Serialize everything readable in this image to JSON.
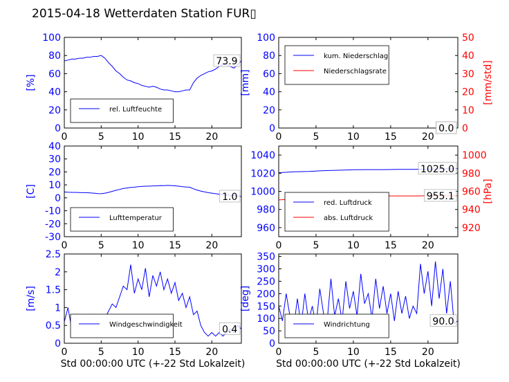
{
  "title": "2015-04-18 Wetterdaten Station FUR▯",
  "colors": {
    "left_axis": "#0000ff",
    "right_axis": "#ff0000",
    "frame": "#000000"
  },
  "chart_data": [
    {
      "type": "line",
      "id": "humidity",
      "ylabel": "[%]",
      "xlim": [
        0,
        24
      ],
      "ylim": [
        0,
        100
      ],
      "xticks": [
        0,
        5,
        10,
        15,
        20
      ],
      "yticks": [
        0,
        20,
        40,
        60,
        80,
        100
      ],
      "legend_position": "lower-left",
      "last_value_label": "73.9",
      "series": [
        {
          "name": "rel. Luftfeuchte",
          "color": "#0000ff",
          "x": [
            0,
            0.5,
            1,
            1.5,
            2,
            2.5,
            3,
            3.5,
            4,
            4.5,
            5,
            5.5,
            6,
            6.5,
            7,
            7.5,
            8,
            8.5,
            9,
            9.5,
            10,
            10.5,
            11,
            11.5,
            12,
            12.5,
            13,
            13.5,
            14,
            14.5,
            15,
            15.5,
            16,
            16.5,
            17,
            17.5,
            18,
            18.5,
            19,
            19.5,
            20,
            20.5,
            21,
            21.5,
            22,
            22.5,
            23,
            23.5,
            24
          ],
          "y": [
            74,
            75,
            76,
            76,
            77,
            77,
            78,
            78,
            79,
            79,
            80,
            77,
            72,
            68,
            63,
            60,
            56,
            53,
            52,
            50,
            49,
            47,
            46,
            45,
            46,
            45,
            43,
            42,
            42,
            41,
            40,
            40,
            41,
            42,
            42,
            50,
            55,
            58,
            60,
            62,
            63,
            65,
            68,
            70,
            70,
            68,
            66,
            70,
            74
          ]
        }
      ]
    },
    {
      "type": "line",
      "id": "precipitation",
      "ylabel": "[mm]",
      "ylabel_right": "[mm/std]",
      "xlim": [
        0,
        24
      ],
      "ylim": [
        0,
        100
      ],
      "ylim_right": [
        0,
        50
      ],
      "xticks": [
        0,
        5,
        10,
        15,
        20
      ],
      "yticks": [
        0,
        20,
        40,
        60,
        80,
        100
      ],
      "yticks_right": [
        0,
        10,
        20,
        30,
        40,
        50
      ],
      "legend_position": "upper-left",
      "last_value_label": "0.0",
      "last_value_label_right": "0.0",
      "series": [
        {
          "name": "kum. Niederschlag",
          "color": "#0000ff",
          "axis": "left",
          "x": [
            0,
            24
          ],
          "y": [
            0,
            0
          ]
        },
        {
          "name": "Niederschlagsrate",
          "color": "#ff0000",
          "axis": "right",
          "x": [
            0,
            24
          ],
          "y": [
            0,
            0
          ]
        }
      ]
    },
    {
      "type": "line",
      "id": "temperature",
      "ylabel": "[C]",
      "xlim": [
        0,
        24
      ],
      "ylim": [
        -30,
        40
      ],
      "xticks": [
        0,
        5,
        10,
        15,
        20
      ],
      "yticks": [
        -30,
        -20,
        -10,
        0,
        10,
        20,
        30,
        40
      ],
      "legend_position": "lower-left",
      "last_value_label": "1.0",
      "series": [
        {
          "name": "Lufttemperatur",
          "color": "#0000ff",
          "x": [
            0,
            0.5,
            1,
            1.5,
            2,
            2.5,
            3,
            3.5,
            4,
            4.5,
            5,
            5.5,
            6,
            6.5,
            7,
            7.5,
            8,
            8.5,
            9,
            9.5,
            10,
            10.5,
            11,
            11.5,
            12,
            12.5,
            13,
            13.5,
            14,
            14.5,
            15,
            15.5,
            16,
            16.5,
            17,
            17.5,
            18,
            18.5,
            19,
            19.5,
            20,
            20.5,
            21,
            21.5,
            22,
            22.5,
            23,
            23.5,
            24
          ],
          "y": [
            4.5,
            4.3,
            4.2,
            4.2,
            4.1,
            4,
            4,
            3.8,
            3.6,
            3.3,
            3.2,
            3.6,
            4.2,
            5,
            5.8,
            6.5,
            7.2,
            7.6,
            8,
            8.2,
            8.6,
            8.8,
            9,
            9,
            9.2,
            9.2,
            9.5,
            9.4,
            9.6,
            9.5,
            9.3,
            9,
            8.6,
            8.3,
            8.2,
            7,
            6,
            5.2,
            4.6,
            4,
            3.6,
            3.2,
            2.8,
            2.5,
            2.2,
            2,
            1.8,
            1.4,
            1
          ]
        }
      ]
    },
    {
      "type": "line",
      "id": "pressure",
      "ylabel_right": "[hPa]",
      "xlim": [
        0,
        24
      ],
      "ylim": [
        950,
        1050
      ],
      "ylim_right": [
        910,
        1010
      ],
      "xticks": [
        0,
        5,
        10,
        15,
        20
      ],
      "yticks": [
        960,
        980,
        1000,
        1020,
        1040
      ],
      "yticks_right": [
        920,
        940,
        960,
        980,
        1000
      ],
      "legend_position": "lower-left",
      "last_value_label": "1025.0",
      "last_value_label_right": "955.1",
      "series": [
        {
          "name": "red. Luftdruck",
          "color": "#0000ff",
          "axis": "left",
          "x": [
            0,
            2,
            4,
            6,
            8,
            10,
            12,
            14,
            16,
            18,
            20,
            22,
            24
          ],
          "y": [
            1020.5,
            1021.5,
            1022,
            1022.8,
            1023.3,
            1023.8,
            1024,
            1024,
            1024.2,
            1024.3,
            1024.5,
            1024.8,
            1025
          ]
        },
        {
          "name": "abs. Luftdruck",
          "color": "#ff0000",
          "axis": "right",
          "x": [
            0,
            2,
            4,
            6,
            8,
            10,
            12,
            14,
            16,
            18,
            20,
            22,
            24
          ],
          "y": [
            950.5,
            951.5,
            952.5,
            953.4,
            954,
            954.6,
            954.8,
            955,
            955,
            955,
            955.1,
            955.1,
            955.1
          ]
        }
      ]
    },
    {
      "type": "line",
      "id": "wind_speed",
      "ylabel": "[m/s]",
      "xlim": [
        0,
        24
      ],
      "ylim": [
        0,
        2.5
      ],
      "xticks": [
        0,
        5,
        10,
        15,
        20
      ],
      "yticks": [
        0,
        0.5,
        1,
        1.5,
        2,
        2.5
      ],
      "legend_position": "lower-left",
      "last_value_label": "0.4",
      "series": [
        {
          "name": "Windgeschwindigkeit",
          "color": "#0000ff",
          "x": [
            0,
            0.5,
            1,
            1.5,
            2,
            2.5,
            3,
            3.5,
            4,
            4.5,
            5,
            5.5,
            6,
            6.5,
            7,
            7.5,
            8,
            8.5,
            9,
            9.5,
            10,
            10.5,
            11,
            11.5,
            12,
            12.5,
            13,
            13.5,
            14,
            14.5,
            15,
            15.5,
            16,
            16.5,
            17,
            17.5,
            18,
            18.5,
            19,
            19.5,
            20,
            20.5,
            21,
            21.5,
            22,
            22.5,
            23,
            23.5,
            24
          ],
          "y": [
            0.6,
            1,
            0.4,
            0.8,
            0.5,
            0.7,
            0.5,
            0.8,
            0.4,
            0.6,
            0.5,
            0.7,
            0.9,
            1.1,
            1.0,
            1.3,
            1.6,
            1.5,
            2.2,
            1.4,
            1.8,
            1.5,
            2.1,
            1.3,
            1.9,
            1.6,
            2.0,
            1.5,
            1.8,
            1.4,
            1.7,
            1.2,
            1.4,
            1.0,
            1.3,
            0.8,
            0.9,
            0.5,
            0.3,
            0.2,
            0.3,
            0.2,
            0.3,
            0.2,
            0.3,
            0.4,
            0.3,
            0.5,
            0.4
          ]
        }
      ]
    },
    {
      "type": "line",
      "id": "wind_direction",
      "ylabel": "[deg]",
      "xlim": [
        0,
        24
      ],
      "ylim": [
        0,
        360
      ],
      "xticks": [
        0,
        5,
        10,
        15,
        20
      ],
      "yticks": [
        0,
        50,
        100,
        150,
        200,
        250,
        300,
        350
      ],
      "legend_position": "lower-left",
      "last_value_label": "90.0",
      "series": [
        {
          "name": "Windrichtung",
          "color": "#0000ff",
          "x": [
            0,
            0.5,
            1,
            1.5,
            2,
            2.5,
            3,
            3.5,
            4,
            4.5,
            5,
            5.5,
            6,
            6.5,
            7,
            7.5,
            8,
            8.5,
            9,
            9.5,
            10,
            10.5,
            11,
            11.5,
            12,
            12.5,
            13,
            13.5,
            14,
            14.5,
            15,
            15.5,
            16,
            16.5,
            17,
            17.5,
            18,
            18.5,
            19,
            19.5,
            20,
            20.5,
            21,
            21.5,
            22,
            22.5,
            23,
            23.5,
            24
          ],
          "y": [
            150,
            90,
            200,
            110,
            60,
            180,
            70,
            200,
            90,
            150,
            70,
            220,
            120,
            90,
            260,
            110,
            180,
            90,
            250,
            140,
            210,
            110,
            280,
            160,
            200,
            100,
            260,
            140,
            230,
            120,
            200,
            90,
            210,
            120,
            190,
            100,
            150,
            120,
            320,
            200,
            290,
            150,
            330,
            180,
            300,
            120,
            250,
            80,
            90
          ]
        }
      ]
    }
  ],
  "shared_xlabel": "Std 00:00:00 UTC (+-22 Std Lokalzeit)"
}
